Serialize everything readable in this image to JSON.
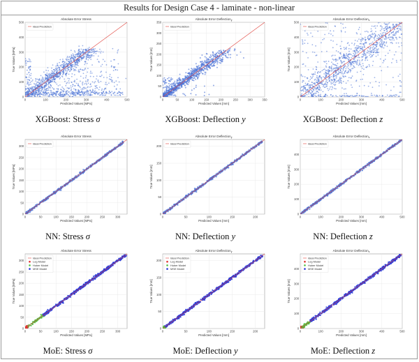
{
  "header": {
    "title": "Results for Design Case 4 - laminate - non-linear"
  },
  "colors": {
    "point": "#4a72d6",
    "ideal": "#e0403a",
    "log": "#e03030",
    "huber": "#50c040",
    "mse": "#2a3ad8",
    "grid": "#e6e6e6"
  },
  "chart_data": [
    {
      "type": "scatter",
      "title": "Absolute Error Stress",
      "caption_prefix": "XGBoost: Stress ",
      "caption_symbol": "σ",
      "xlabel": "Predicted Values [MPa]",
      "ylabel": "True Values [MPa]",
      "xlim": [
        0,
        500
      ],
      "ylim": [
        0,
        500
      ],
      "xticks": [
        "0",
        "100",
        "200",
        "300",
        "400",
        "500"
      ],
      "yticks": [
        "0",
        "100",
        "200",
        "300",
        "400",
        "500"
      ],
      "legend": [
        "Ideal Prediction"
      ],
      "pattern": "xgb_stress",
      "max_value": 320
    },
    {
      "type": "scatter",
      "title": "Absolute Error Deflection",
      "title_sub": "y",
      "caption_prefix": "XGBoost: Deflection ",
      "caption_symbol": "y",
      "xlabel": "Predicted Values [mm]",
      "ylabel": "True Values [mm]",
      "xlim": [
        0,
        350
      ],
      "ylim": [
        0,
        350
      ],
      "xticks": [
        "0",
        "50",
        "100",
        "150",
        "200",
        "250",
        "300",
        "350"
      ],
      "yticks": [
        "0",
        "50",
        "100",
        "150",
        "200",
        "250",
        "300",
        "350"
      ],
      "legend": [
        "Ideal Prediction"
      ],
      "pattern": "xgb_defl_y",
      "max_value": 220
    },
    {
      "type": "scatter",
      "title": "Absolute Error Deflection",
      "title_sub": "z",
      "caption_prefix": "XGBoost: Deflection ",
      "caption_symbol": "z",
      "xlabel": "Predicted Values [mm]",
      "ylabel": "True Values [mm]",
      "xlim": [
        0,
        500
      ],
      "ylim": [
        0,
        500
      ],
      "xticks": [
        "0",
        "100",
        "200",
        "300",
        "400",
        "500"
      ],
      "yticks": [
        "0",
        "100",
        "200",
        "300",
        "400",
        "500"
      ],
      "legend": [
        "Ideal Prediction"
      ],
      "pattern": "xgb_defl_z",
      "max_value": 500
    },
    {
      "type": "scatter",
      "title": "Absolute Error Stress",
      "caption_prefix": "NN: Stress ",
      "caption_symbol": "σ",
      "xlabel": "Predicted Values [MPa]",
      "ylabel": "True Values [MPa]",
      "xlim": [
        0,
        330
      ],
      "ylim": [
        0,
        330
      ],
      "xticks": [
        "0",
        "50",
        "100",
        "150",
        "200",
        "250",
        "300"
      ],
      "yticks": [
        "0",
        "50",
        "100",
        "150",
        "200",
        "250",
        "300"
      ],
      "legend": [
        "Ideal Prediction"
      ],
      "pattern": "nn",
      "max_value": 320
    },
    {
      "type": "scatter",
      "title": "Absolute Error Deflection",
      "title_sub": "y",
      "caption_prefix": "NN: Deflection ",
      "caption_symbol": "y",
      "xlabel": "Predicted Values [mm]",
      "ylabel": "True Values [mm]",
      "xlim": [
        0,
        220
      ],
      "ylim": [
        0,
        220
      ],
      "xticks": [
        "0",
        "50",
        "100",
        "150",
        "200"
      ],
      "yticks": [
        "0",
        "50",
        "100",
        "150",
        "200"
      ],
      "legend": [
        "Ideal Prediction"
      ],
      "pattern": "nn",
      "max_value": 215
    },
    {
      "type": "scatter",
      "title": "Absolute Error Deflection",
      "title_sub": "z",
      "caption_prefix": "NN: Deflection ",
      "caption_symbol": "z",
      "xlabel": "Predicted Values [mm]",
      "ylabel": "True Values [mm]",
      "xlim": [
        0,
        500
      ],
      "ylim": [
        0,
        500
      ],
      "xticks": [
        "0",
        "100",
        "200",
        "300",
        "400",
        "500"
      ],
      "yticks": [
        "0",
        "100",
        "200",
        "300",
        "400"
      ],
      "legend": [
        "Ideal Prediction"
      ],
      "pattern": "nn",
      "max_value": 495
    },
    {
      "type": "scatter",
      "title": "Absolute Error Stress",
      "caption_prefix": "MoE: Stress ",
      "caption_symbol": "σ",
      "xlabel": "Predicted Values [MPa]",
      "ylabel": "True Values [MPa]",
      "xlim": [
        0,
        330
      ],
      "ylim": [
        0,
        330
      ],
      "xticks": [
        "0",
        "50",
        "100",
        "150",
        "200",
        "250",
        "300"
      ],
      "yticks": [
        "0",
        "50",
        "100",
        "150",
        "200",
        "250",
        "300"
      ],
      "legend": [
        "Ideal Prediction",
        "Log Model",
        "Huber Model",
        "MSE Model"
      ],
      "pattern": "moe",
      "max_value": 325,
      "segments": [
        [
          0,
          8
        ],
        [
          8,
          60
        ],
        [
          60,
          325
        ]
      ]
    },
    {
      "type": "scatter",
      "title": "Absolute Error Deflection",
      "title_sub": "y",
      "caption_prefix": "MoE: Deflection ",
      "caption_symbol": "y",
      "xlabel": "Predicted Values [mm]",
      "ylabel": "True Values [mm]",
      "xlim": [
        0,
        220
      ],
      "ylim": [
        0,
        220
      ],
      "xticks": [
        "0",
        "50",
        "100",
        "150",
        "200"
      ],
      "yticks": [
        "0",
        "50",
        "100",
        "150",
        "200"
      ],
      "legend": [
        "Ideal Prediction",
        "Log Model",
        "Huber Model",
        "MSE Model"
      ],
      "pattern": "moe",
      "max_value": 215,
      "segments": [
        [
          0,
          2
        ],
        [
          2,
          5
        ],
        [
          5,
          215
        ]
      ]
    },
    {
      "type": "scatter",
      "title": "Absolute Error Deflection",
      "title_sub": "z",
      "caption_prefix": "MoE: Deflection ",
      "caption_symbol": "z",
      "xlabel": "Predicted Values [mm]",
      "ylabel": "True Values [mm]",
      "xlim": [
        0,
        500
      ],
      "ylim": [
        0,
        500
      ],
      "xticks": [
        "0",
        "100",
        "200",
        "300",
        "400",
        "500"
      ],
      "yticks": [
        "0",
        "100",
        "200",
        "300",
        "400"
      ],
      "legend": [
        "Ideal Prediction",
        "Log Model",
        "Huber Model",
        "MSE Model"
      ],
      "pattern": "moe",
      "max_value": 495,
      "segments": [
        [
          0,
          10
        ],
        [
          10,
          45
        ],
        [
          45,
          495
        ]
      ]
    }
  ]
}
